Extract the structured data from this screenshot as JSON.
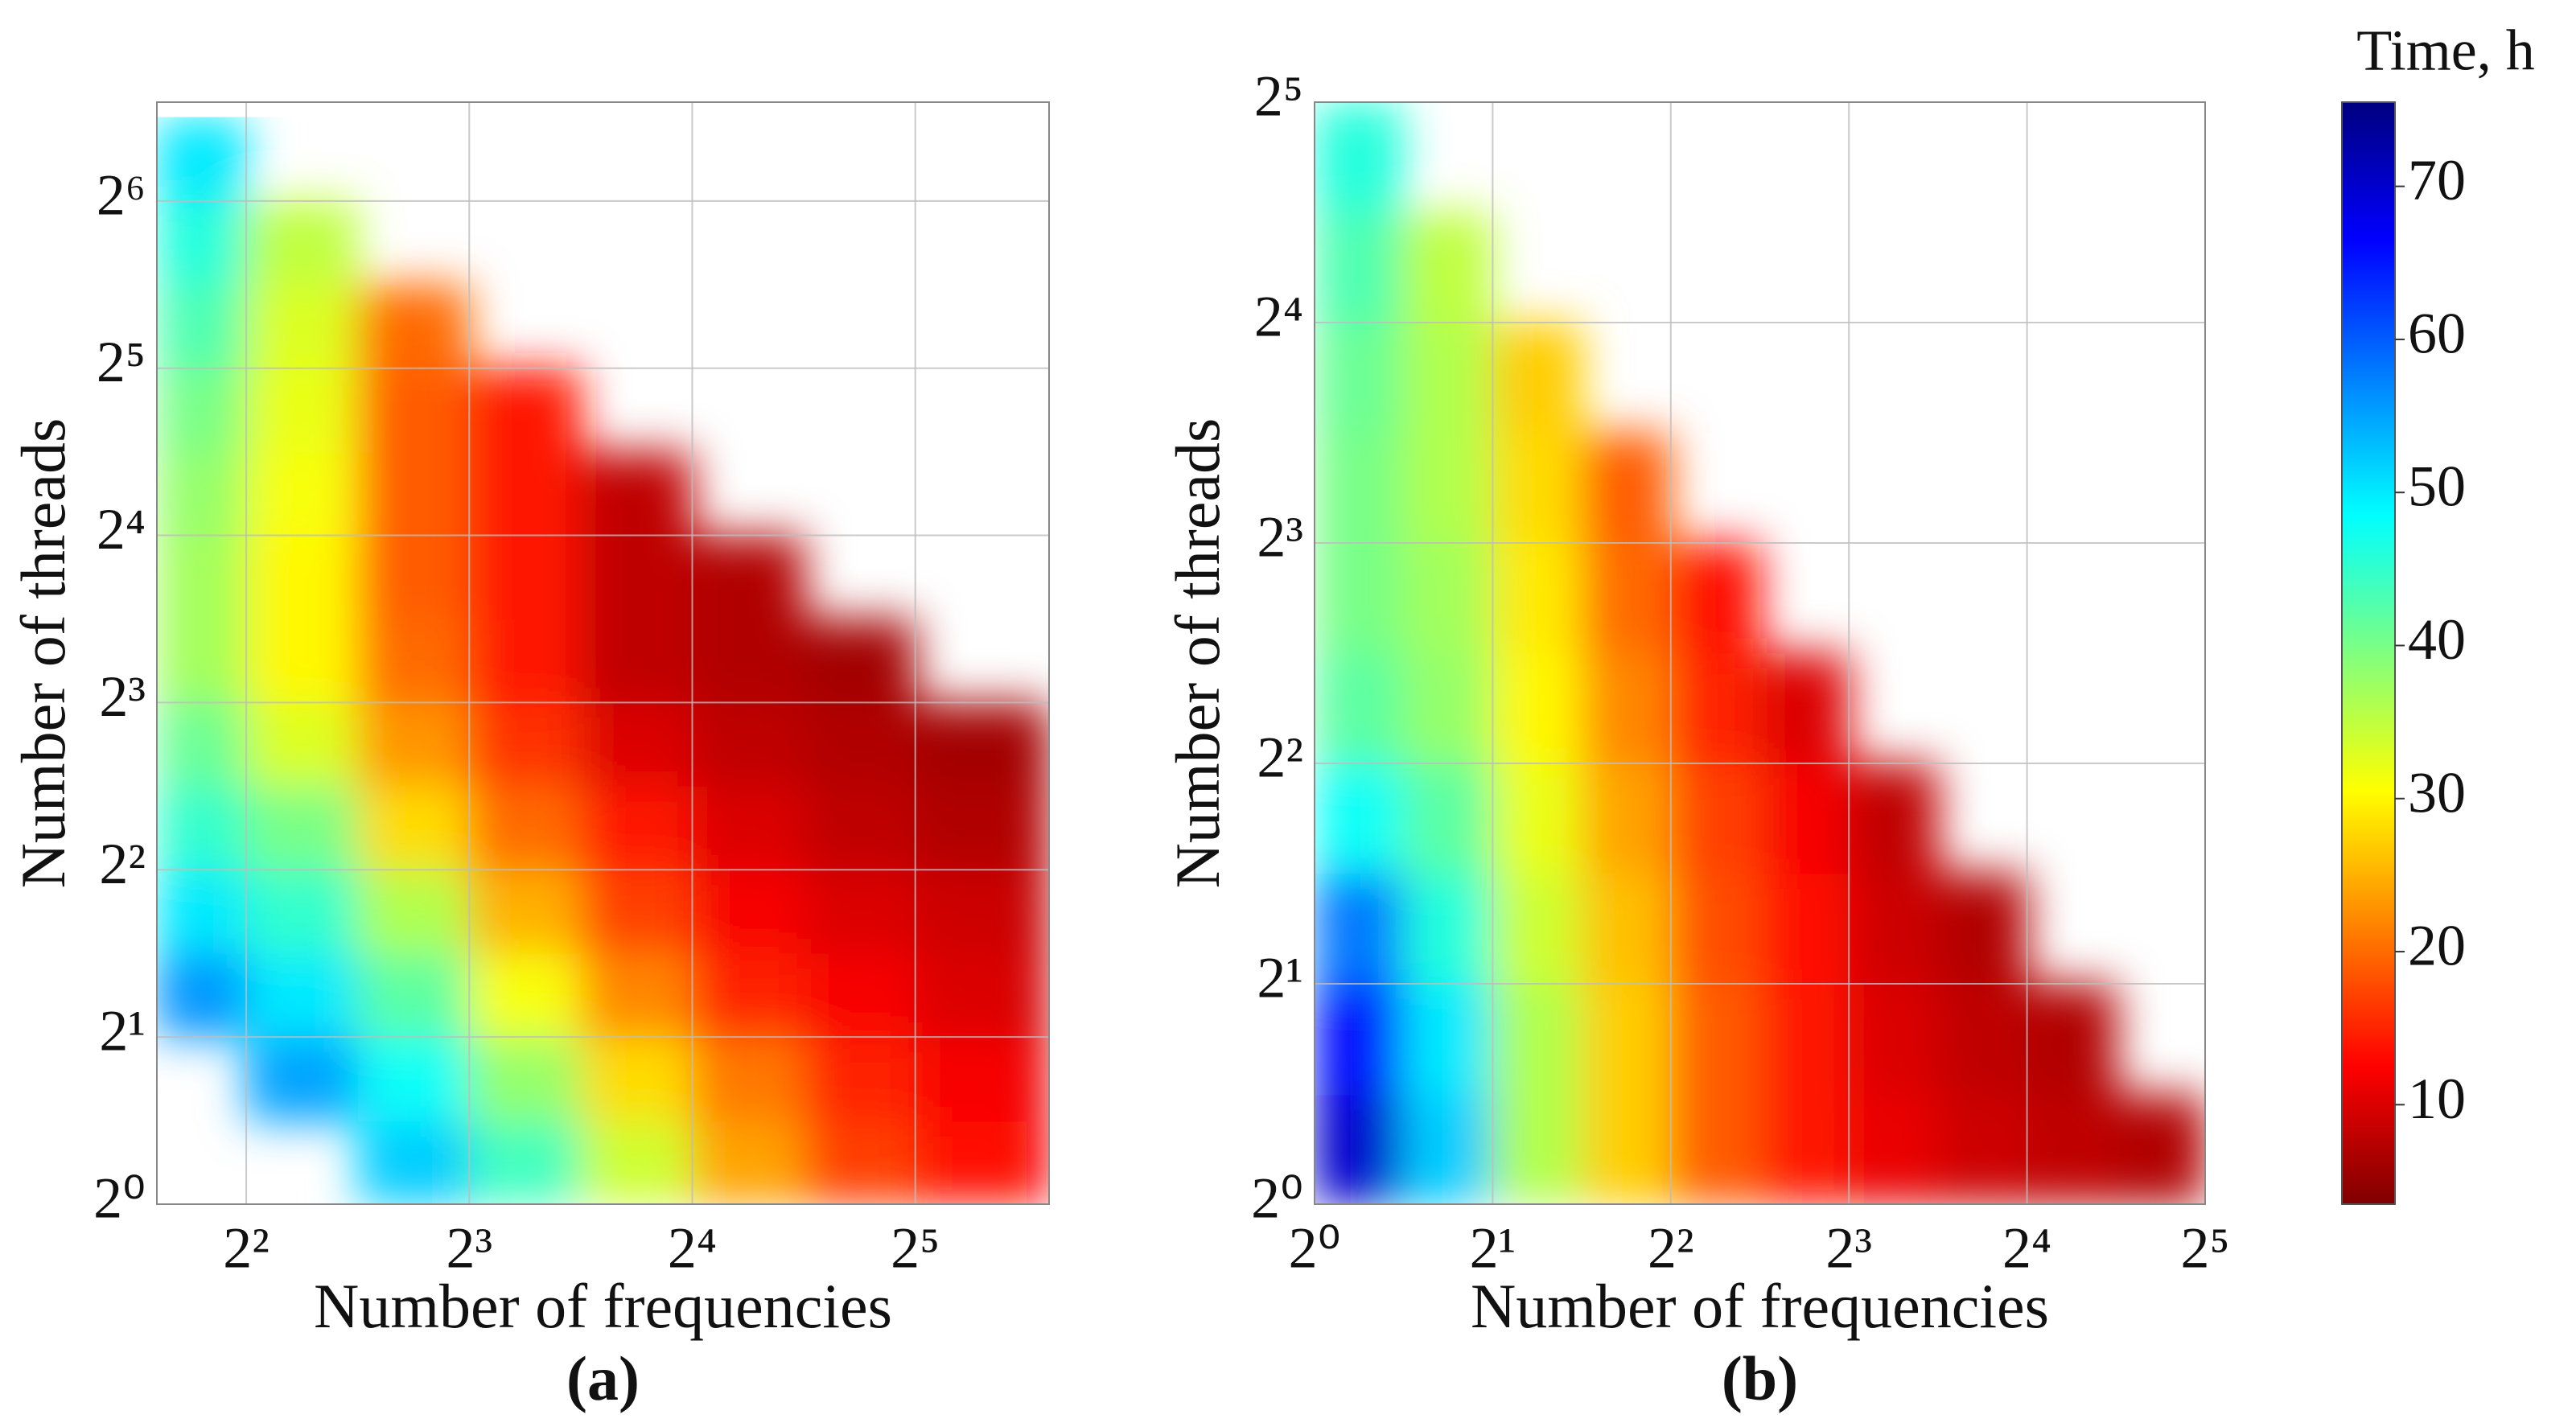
{
  "chart_data": [
    {
      "type": "heatmap",
      "panel_label": "(a)",
      "xlabel": "Number of frequencies",
      "ylabel": "Number of threads",
      "xscale": "log2",
      "yscale": "log2",
      "grid": true,
      "colormap": "jet_r",
      "xlim": [
        3.03,
        48.5
      ],
      "ylim": [
        1,
        96.4
      ],
      "xticks": [
        {
          "value": 4,
          "label": "2²"
        },
        {
          "value": 8,
          "label": "2³"
        },
        {
          "value": 16,
          "label": "2⁴"
        },
        {
          "value": 32,
          "label": "2⁵"
        }
      ],
      "yticks": [
        {
          "value": 1,
          "label": "2⁰"
        },
        {
          "value": 2,
          "label": "2¹"
        },
        {
          "value": 4,
          "label": "2²"
        },
        {
          "value": 8,
          "label": "2³"
        },
        {
          "value": 16,
          "label": "2⁴"
        },
        {
          "value": 32,
          "label": "2⁵"
        },
        {
          "value": 64,
          "label": "2⁶"
        }
      ],
      "x_bins": [
        3.03,
        4,
        5.66,
        8,
        11.31,
        16,
        22.63,
        32,
        45.25,
        48.5
      ],
      "y_bins": [
        1,
        1.41,
        2,
        2.83,
        4,
        5.66,
        8,
        11.31,
        16,
        22.63,
        32,
        45.25,
        64,
        90.51
      ],
      "z": [
        [
          null,
          null,
          52,
          44,
          34,
          24,
          17,
          13,
          12
        ],
        [
          null,
          55,
          48,
          38,
          28,
          21,
          15,
          12,
          11
        ],
        [
          56,
          50,
          42,
          31,
          22,
          15,
          12,
          10,
          9
        ],
        [
          50,
          45,
          36,
          25,
          17,
          12,
          10,
          9,
          8
        ],
        [
          45,
          40,
          28,
          20,
          14,
          10,
          8,
          7,
          7
        ],
        [
          41,
          33,
          23,
          16,
          10,
          8,
          7,
          6,
          6
        ],
        [
          37,
          30,
          20,
          14,
          8,
          7,
          6,
          null,
          null
        ],
        [
          37,
          30,
          19,
          14,
          8,
          7,
          null,
          null,
          null
        ],
        [
          38,
          31,
          19,
          14,
          8,
          null,
          null,
          null,
          null
        ],
        [
          40,
          32,
          19,
          14,
          null,
          null,
          null,
          null,
          null
        ],
        [
          43,
          33,
          20,
          null,
          null,
          null,
          null,
          null,
          null
        ],
        [
          46,
          35,
          null,
          null,
          null,
          null,
          null,
          null,
          null
        ],
        [
          50,
          null,
          null,
          null,
          null,
          null,
          null,
          null,
          null
        ]
      ]
    },
    {
      "type": "heatmap",
      "panel_label": "(b)",
      "xlabel": "Number of frequencies",
      "ylabel": "Number of threads",
      "xscale": "log2",
      "yscale": "log2",
      "grid": true,
      "colormap": "jet_r",
      "xlim": [
        1,
        32
      ],
      "ylim": [
        1,
        32
      ],
      "xticks": [
        {
          "value": 1,
          "label": "2⁰"
        },
        {
          "value": 2,
          "label": "2¹"
        },
        {
          "value": 4,
          "label": "2²"
        },
        {
          "value": 8,
          "label": "2³"
        },
        {
          "value": 16,
          "label": "2⁴"
        },
        {
          "value": 32,
          "label": "2⁵"
        }
      ],
      "yticks": [
        {
          "value": 1,
          "label": "2⁰"
        },
        {
          "value": 2,
          "label": "2¹"
        },
        {
          "value": 4,
          "label": "2²"
        },
        {
          "value": 8,
          "label": "2³"
        },
        {
          "value": 16,
          "label": "2⁴"
        },
        {
          "value": 32,
          "label": "2⁵"
        }
      ],
      "x_bins": [
        1,
        1.41,
        2,
        2.83,
        4,
        5.66,
        8,
        11.31,
        16,
        22.63,
        32
      ],
      "y_bins": [
        1,
        1.41,
        2,
        2.83,
        4,
        5.66,
        8,
        11.31,
        16,
        22.63,
        32
      ],
      "z": [
        [
          70,
          52,
          36,
          27,
          19,
          14,
          11,
          9,
          8,
          7
        ],
        [
          66,
          50,
          36,
          27,
          19,
          14,
          10,
          8,
          7,
          null
        ],
        [
          58,
          46,
          34,
          26,
          18,
          13,
          9,
          7,
          null,
          null
        ],
        [
          48,
          42,
          32,
          24,
          17,
          12,
          8,
          null,
          null,
          null
        ],
        [
          42,
          38,
          30,
          22,
          15,
          10,
          null,
          null,
          null,
          null
        ],
        [
          40,
          37,
          29,
          20,
          13,
          null,
          null,
          null,
          null,
          null
        ],
        [
          40,
          36,
          28,
          19,
          null,
          null,
          null,
          null,
          null,
          null
        ],
        [
          41,
          36,
          27,
          null,
          null,
          null,
          null,
          null,
          null,
          null
        ],
        [
          43,
          35,
          null,
          null,
          null,
          null,
          null,
          null,
          null,
          null
        ],
        [
          46,
          null,
          null,
          null,
          null,
          null,
          null,
          null,
          null,
          null
        ]
      ]
    }
  ],
  "colorbar": {
    "title": "Time, h",
    "colormap": "jet_r",
    "clim": [
      3.5,
      75.5
    ],
    "ticks": [
      10,
      20,
      30,
      40,
      50,
      60,
      70
    ]
  }
}
